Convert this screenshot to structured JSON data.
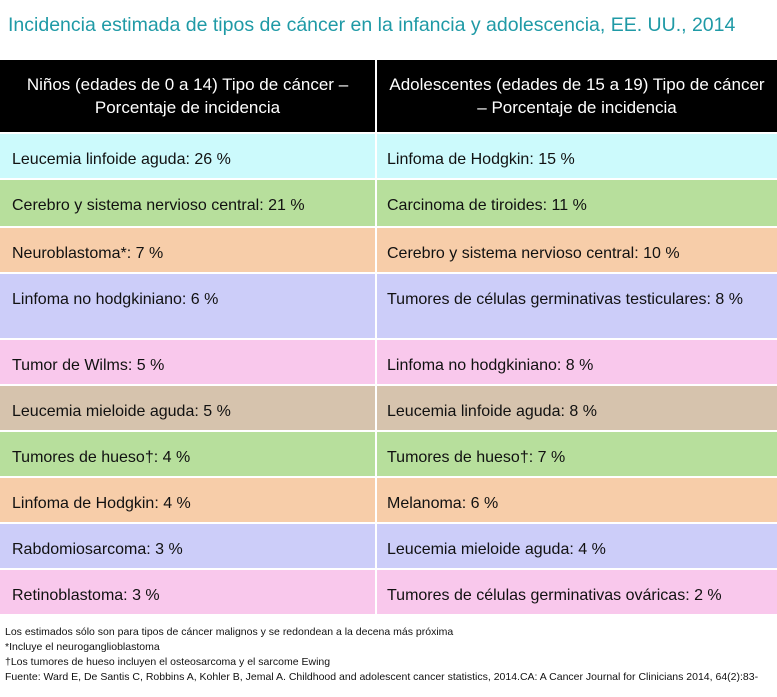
{
  "title": "Incidencia estimada de tipos de cáncer en la infancia y adolescencia, EE. UU., 2014",
  "headers": {
    "children": "Niños (edades de 0 a 14) Tipo de cáncer – Porcentaje de incidencia",
    "adolescents": "Adolescentes (edades de 15 a 19) Tipo de cáncer – Porcentaje de incidencia"
  },
  "rows": [
    {
      "children": "Leucemia linfoide aguda: 26 %",
      "adolescents": "Linfoma de Hodgkin: 15 %",
      "color": "#ccfafc"
    },
    {
      "children": "Cerebro y sistema nervioso central: 21 %",
      "adolescents": "Carcinoma de tiroides: 11 %",
      "color": "#b7df9c"
    },
    {
      "children": "Neuroblastoma*: 7 %",
      "adolescents": "Cerebro y sistema nervioso central: 10 %",
      "color": "#f7cda9"
    },
    {
      "children": "Linfoma no hodgkiniano: 6 %",
      "adolescents": "Tumores de células germinativas testiculares: 8 %",
      "color": "#cccdf9"
    },
    {
      "children": "Tumor de Wilms: 5 %",
      "adolescents": "Linfoma no hodgkiniano: 8 %",
      "color": "#f9c8ec"
    },
    {
      "children": "Leucemia mieloide aguda: 5 %",
      "adolescents": "Leucemia linfoide aguda: 8 %",
      "color": "#d6c3ad"
    },
    {
      "children": "Tumores de hueso†: 4 %",
      "adolescents": "Tumores de hueso†: 7 %",
      "color": "#b7df9c"
    },
    {
      "children": "Linfoma de Hodgkin: 4 %",
      "adolescents": "Melanoma: 6 %",
      "color": "#f7cda9"
    },
    {
      "children": "Rabdomiosarcoma: 3 %",
      "adolescents": "Leucemia mieloide aguda: 4 %",
      "color": "#cccdf9"
    },
    {
      "children": "Retinoblastoma: 3 %",
      "adolescents": "Tumores de células germinativas ováricas: 2 %",
      "color": "#f9c8ec"
    }
  ],
  "footnotes": [
    "Los estimados sólo son para tipos de cáncer malignos y se redondean a la decena más próxima",
    "*Incluye el neuroganglioblastoma",
    "†Los tumores de hueso incluyen el osteosarcoma y el sarcome Ewing",
    "Fuente: Ward E, De Santis C, Robbins A, Kohler B, Jemal A. Childhood and adolescent cancer statistics, 2014.CA: A Cancer Journal for Clinicians 2014, 64(2):83-"
  ]
}
